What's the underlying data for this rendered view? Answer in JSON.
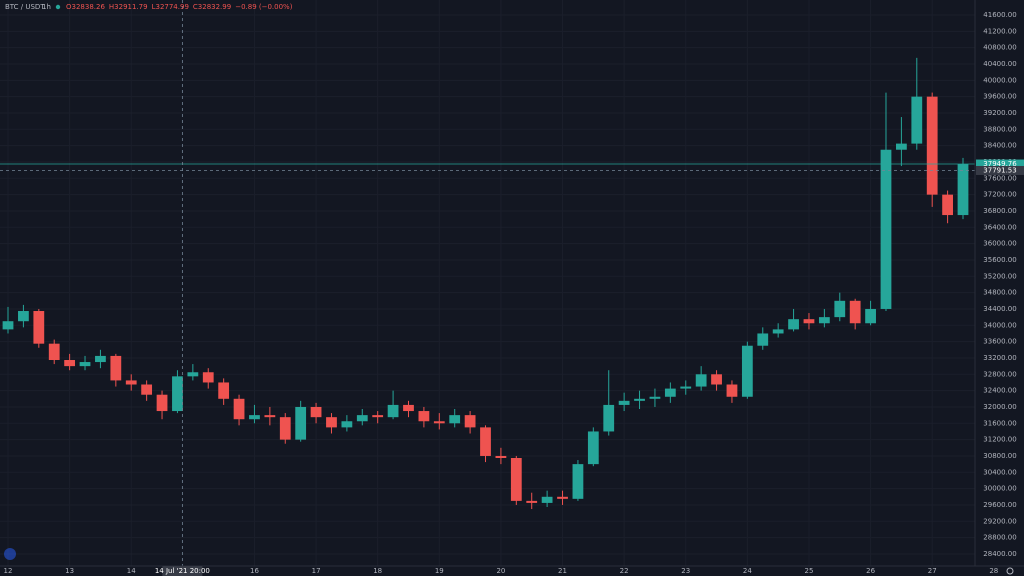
{
  "header": {
    "symbol": "BTC / USDT",
    "interval": "1h",
    "ohlc": [
      "O32838.26",
      "H32911.79",
      "L32774.99",
      "C32832.99",
      "−0.89 (−0.00%)"
    ]
  },
  "chart_data": {
    "type": "candlestick",
    "x": [
      12.0,
      12.25,
      12.5,
      12.75,
      13.0,
      13.25,
      13.5,
      13.75,
      14.0,
      14.25,
      14.5,
      14.75,
      15.0,
      15.25,
      15.5,
      15.75,
      16.0,
      16.25,
      16.5,
      16.75,
      17.0,
      17.25,
      17.5,
      17.75,
      18.0,
      18.25,
      18.5,
      18.75,
      19.0,
      19.25,
      19.5,
      19.75,
      20.0,
      20.25,
      20.5,
      20.75,
      21.0,
      21.25,
      21.5,
      21.75,
      22.0,
      22.25,
      22.5,
      22.75,
      23.0,
      23.25,
      23.5,
      23.75,
      24.0,
      24.25,
      24.5,
      24.75,
      25.0,
      25.25,
      25.5,
      25.75,
      26.0,
      26.25,
      26.5,
      26.75,
      27.0,
      27.25,
      27.5
    ],
    "open": [
      33900,
      34100,
      34350,
      33550,
      33150,
      33000,
      33100,
      33250,
      32650,
      32550,
      32300,
      31900,
      32750,
      32850,
      32600,
      32200,
      31700,
      31800,
      31750,
      31200,
      32000,
      31750,
      31500,
      31650,
      31800,
      31750,
      32050,
      31900,
      31650,
      31600,
      31800,
      31500,
      30800,
      30750,
      29700,
      29650,
      29800,
      29750,
      30600,
      31400,
      32050,
      32150,
      32200,
      32250,
      32450,
      32500,
      32800,
      32550,
      32250,
      33500,
      33800,
      33900,
      34150,
      34050,
      34200,
      34600,
      34050,
      34400,
      38300,
      38450,
      39600,
      37200,
      36700
    ],
    "high": [
      34450,
      34500,
      34400,
      33650,
      33300,
      33250,
      33400,
      33300,
      32800,
      32650,
      32400,
      32900,
      33050,
      32950,
      32700,
      32300,
      32050,
      32000,
      31850,
      32150,
      32100,
      31850,
      31800,
      31950,
      31900,
      32400,
      32150,
      32000,
      31850,
      31950,
      31900,
      31550,
      31000,
      30800,
      29900,
      29950,
      29950,
      30700,
      31500,
      32900,
      32350,
      32400,
      32450,
      32600,
      32650,
      33000,
      32900,
      32650,
      33600,
      33950,
      34050,
      34400,
      34300,
      34400,
      34800,
      34650,
      34600,
      39700,
      39100,
      40550,
      39700,
      37300,
      38100
    ],
    "low": [
      33800,
      33950,
      33450,
      33050,
      32900,
      32900,
      32950,
      32500,
      32400,
      32150,
      31700,
      31850,
      32650,
      32450,
      32050,
      31550,
      31600,
      31550,
      31100,
      31150,
      31600,
      31350,
      31400,
      31550,
      31600,
      31700,
      31750,
      31500,
      31450,
      31500,
      31350,
      30650,
      30600,
      29600,
      29500,
      29550,
      29600,
      29700,
      30550,
      31300,
      31900,
      31950,
      32000,
      32100,
      32300,
      32400,
      32400,
      32100,
      32200,
      33400,
      33700,
      33850,
      33900,
      33950,
      34100,
      33900,
      34000,
      34350,
      37900,
      38300,
      36900,
      36500,
      36600
    ],
    "close": [
      34100,
      34350,
      33550,
      33150,
      33000,
      33100,
      33250,
      32650,
      32550,
      32300,
      31900,
      32750,
      32850,
      32600,
      32200,
      31700,
      31800,
      31750,
      31200,
      32000,
      31750,
      31500,
      31650,
      31800,
      31750,
      32050,
      31900,
      31650,
      31600,
      31800,
      31500,
      30800,
      30750,
      29700,
      29650,
      29800,
      29750,
      30600,
      31400,
      32050,
      32150,
      32200,
      32250,
      32450,
      32500,
      32800,
      32550,
      32250,
      33500,
      33800,
      33900,
      34150,
      34050,
      34200,
      34600,
      34050,
      34400,
      38300,
      38450,
      39600,
      37200,
      36700,
      37950
    ],
    "up_color": "#26a69a",
    "down_color": "#ef5350",
    "xlim": [
      11.87,
      28.49
    ],
    "ylim": [
      28105,
      41967
    ],
    "xticks": [
      12,
      13,
      14,
      16,
      17,
      18,
      19,
      20,
      21,
      22,
      23,
      24,
      25,
      26,
      27,
      28
    ],
    "yticks": [
      {
        "value": 41600,
        "label": "41600.00"
      },
      {
        "value": 41200,
        "label": "41200.00"
      },
      {
        "value": 40800,
        "label": "40800.00"
      },
      {
        "value": 40400,
        "label": "40400.00"
      },
      {
        "value": 40000,
        "label": "40000.00"
      },
      {
        "value": 39600,
        "label": "39600.00"
      },
      {
        "value": 39200,
        "label": "39200.00"
      },
      {
        "value": 38800,
        "label": "38800.00"
      },
      {
        "value": 38400,
        "label": "38400.00"
      },
      {
        "value": 38000,
        "label": "38000.00"
      },
      {
        "value": 37600,
        "label": "37600.00"
      },
      {
        "value": 37200,
        "label": "37200.00"
      },
      {
        "value": 36800,
        "label": "36800.00"
      },
      {
        "value": 36400,
        "label": "36400.00"
      },
      {
        "value": 36000,
        "label": "36000.00"
      },
      {
        "value": 35600,
        "label": "35600.00"
      },
      {
        "value": 35200,
        "label": "35200.00"
      },
      {
        "value": 34800,
        "label": "34800.00"
      },
      {
        "value": 34400,
        "label": "34400.00"
      },
      {
        "value": 34000,
        "label": "34000.00"
      },
      {
        "value": 33600,
        "label": "33600.00"
      },
      {
        "value": 33200,
        "label": "33200.00"
      },
      {
        "value": 32800,
        "label": "32800.00"
      },
      {
        "value": 32400,
        "label": "32400.00"
      },
      {
        "value": 32000,
        "label": "32000.00"
      },
      {
        "value": 31600,
        "label": "31600.00"
      },
      {
        "value": 31200,
        "label": "31200.00"
      },
      {
        "value": 30800,
        "label": "30800.00"
      },
      {
        "value": 30400,
        "label": "30400.00"
      },
      {
        "value": 30000,
        "label": "30000.00"
      },
      {
        "value": 29600,
        "label": "29600.00"
      },
      {
        "value": 29200,
        "label": "29200.00"
      },
      {
        "value": 28800,
        "label": "28800.00"
      },
      {
        "value": 28400,
        "label": "28400.00"
      }
    ],
    "grid": true,
    "last_price": 37949.76,
    "crosshair_price": 37791.53,
    "crosshair_x": 14.83,
    "crosshair_x_label": "14 Jul '21   20:00"
  }
}
